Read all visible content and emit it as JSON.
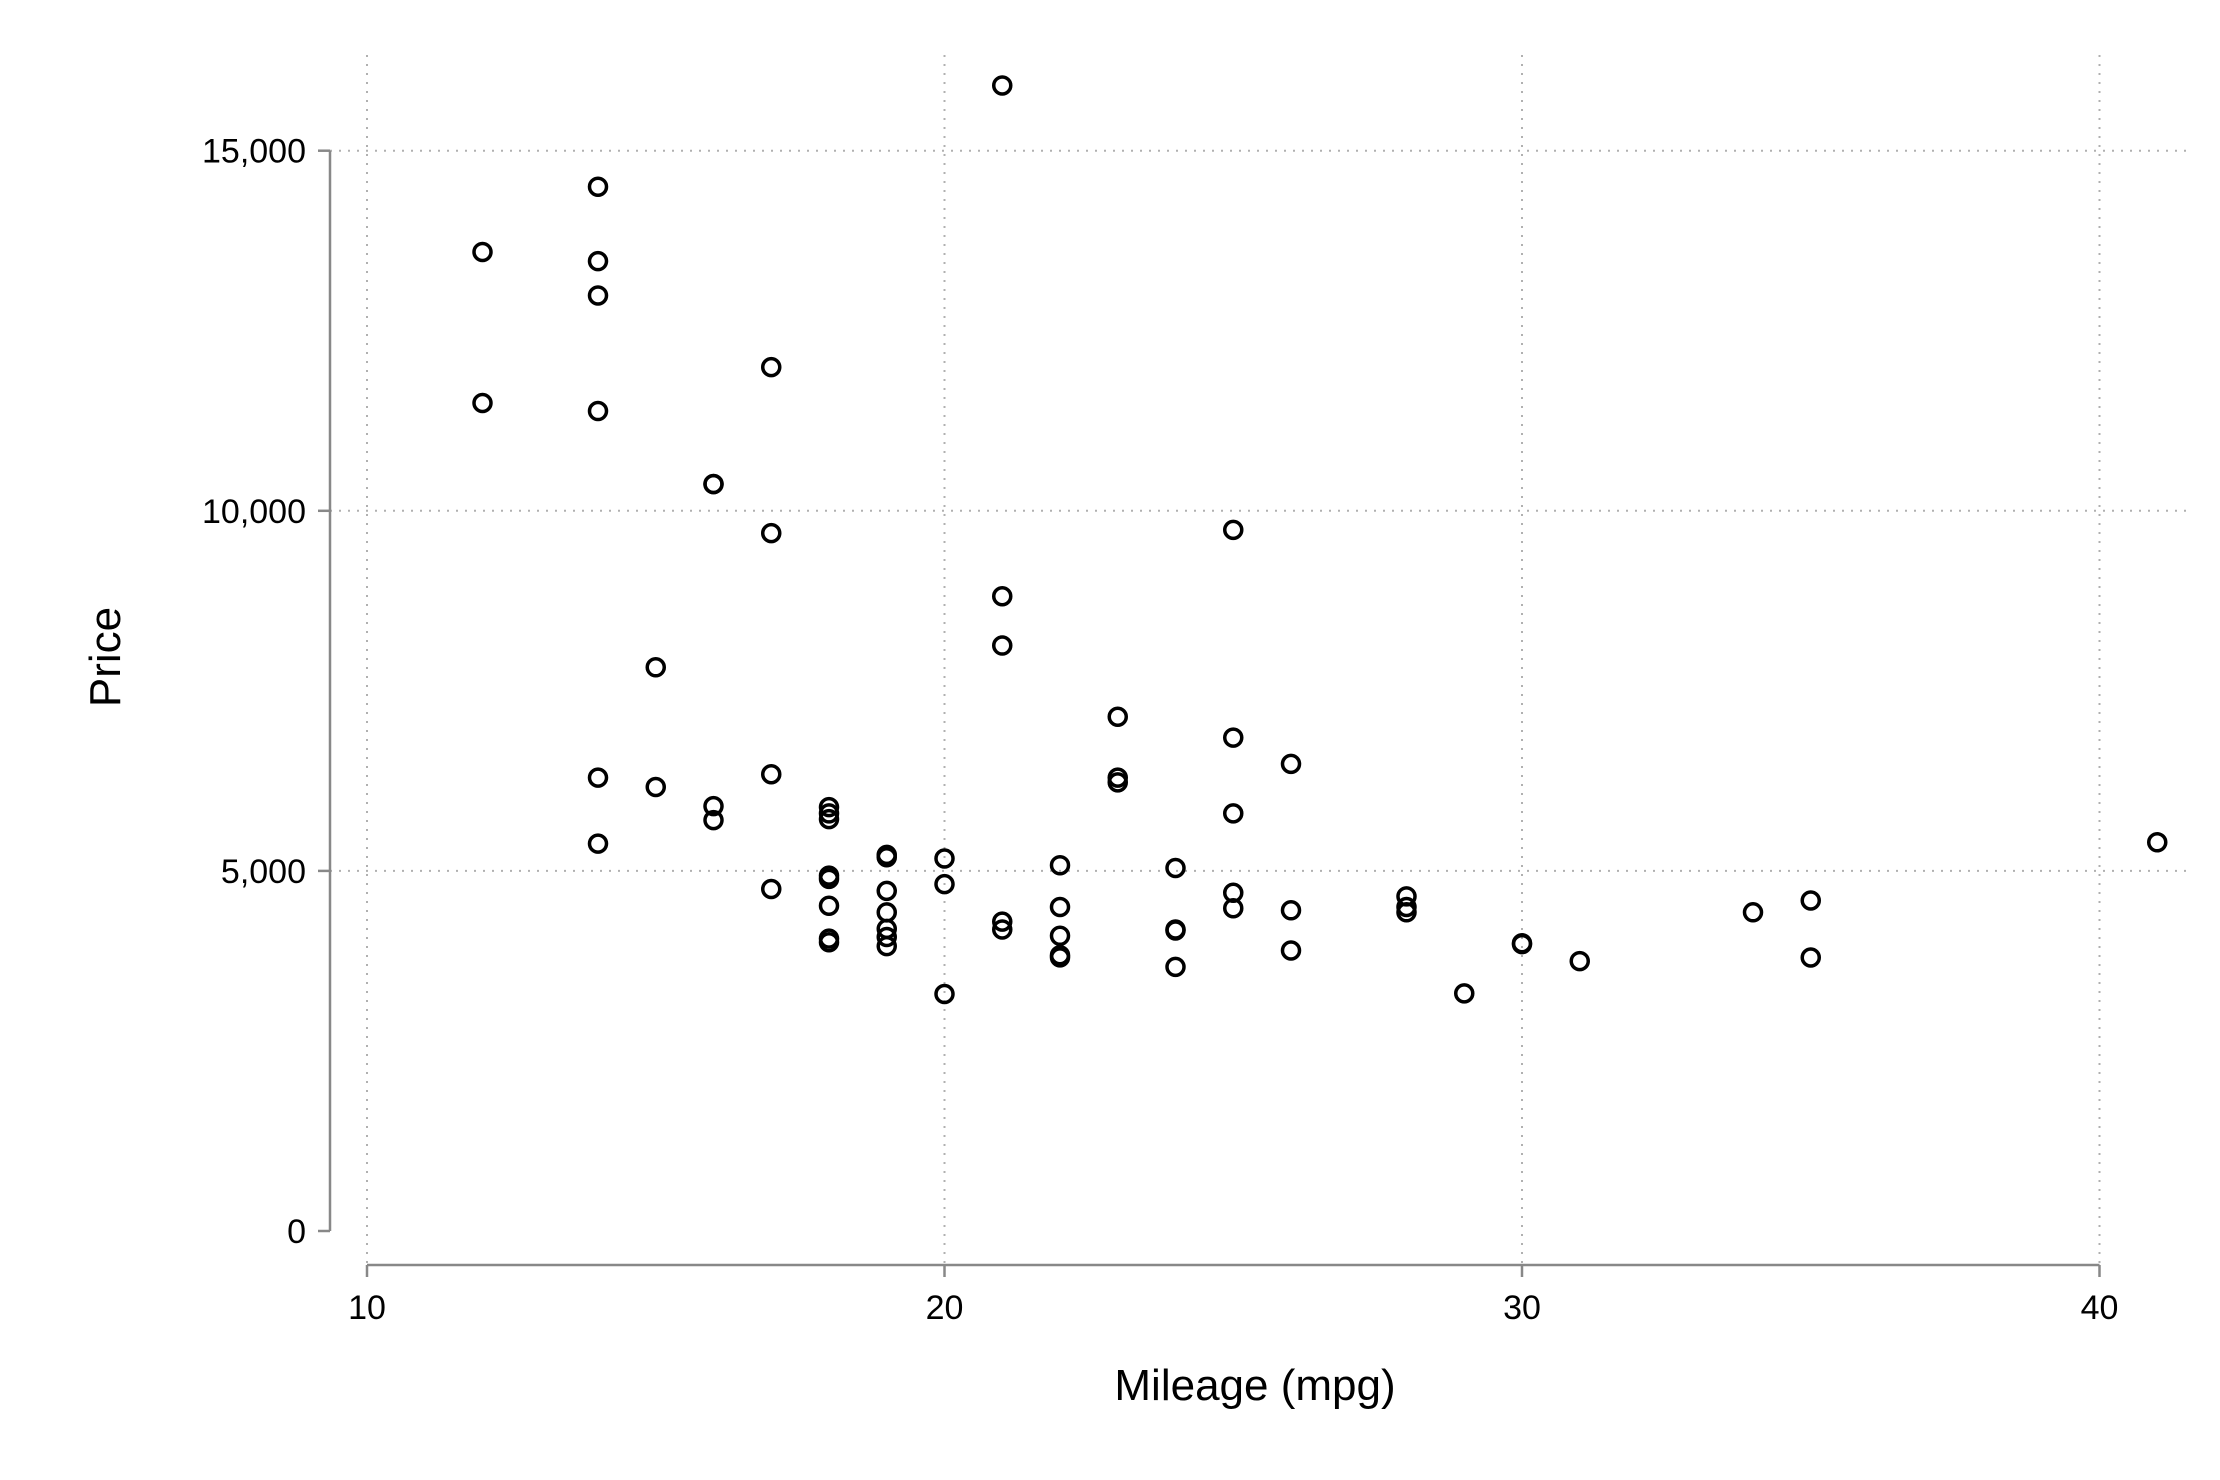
{
  "chart_data": {
    "type": "scatter",
    "title": "",
    "xlabel": "Mileage (mpg)",
    "ylabel": "Price",
    "xlim": [
      10,
      41
    ],
    "ylim": [
      0,
      15906
    ],
    "xticks": [
      10,
      20,
      30,
      40
    ],
    "xtick_labels": [
      "10",
      "20",
      "30",
      "40"
    ],
    "yticks": [
      0,
      5000,
      10000,
      15000
    ],
    "ytick_labels": [
      "0",
      "5,000",
      "10,000",
      "15,000"
    ],
    "grid": true,
    "legend": "none",
    "marker": "hollow-circle",
    "series": [
      {
        "points": [
          [
            12,
            13594
          ],
          [
            12,
            11497
          ],
          [
            14,
            14500
          ],
          [
            14,
            13466
          ],
          [
            14,
            12990
          ],
          [
            14,
            11385
          ],
          [
            14,
            6295
          ],
          [
            14,
            5379
          ],
          [
            15,
            7827
          ],
          [
            15,
            6165
          ],
          [
            16,
            10371
          ],
          [
            16,
            10372
          ],
          [
            16,
            5899
          ],
          [
            16,
            5705
          ],
          [
            17,
            11995
          ],
          [
            17,
            9690
          ],
          [
            17,
            6342
          ],
          [
            17,
            4749
          ],
          [
            18,
            5886
          ],
          [
            18,
            5798
          ],
          [
            18,
            5719
          ],
          [
            18,
            4934
          ],
          [
            18,
            4890
          ],
          [
            18,
            4516
          ],
          [
            18,
            4060
          ],
          [
            18,
            4010
          ],
          [
            19,
            5189
          ],
          [
            19,
            5222
          ],
          [
            19,
            4723
          ],
          [
            19,
            4424
          ],
          [
            19,
            4195
          ],
          [
            19,
            4082
          ],
          [
            19,
            3955
          ],
          [
            20,
            5172
          ],
          [
            20,
            4816
          ],
          [
            20,
            3291
          ],
          [
            21,
            15906
          ],
          [
            21,
            8814
          ],
          [
            21,
            8129
          ],
          [
            21,
            4296
          ],
          [
            21,
            4187
          ],
          [
            22,
            5079
          ],
          [
            22,
            4499
          ],
          [
            22,
            4099
          ],
          [
            22,
            3829
          ],
          [
            22,
            3799
          ],
          [
            23,
            7140
          ],
          [
            23,
            6295
          ],
          [
            23,
            6229
          ],
          [
            24,
            5040
          ],
          [
            24,
            4172
          ],
          [
            24,
            4187
          ],
          [
            24,
            3667
          ],
          [
            25,
            9735
          ],
          [
            25,
            6850
          ],
          [
            25,
            5799
          ],
          [
            25,
            4697
          ],
          [
            25,
            4482
          ],
          [
            26,
            6486
          ],
          [
            26,
            4453
          ],
          [
            26,
            3895
          ],
          [
            28,
            4647
          ],
          [
            28,
            4499
          ],
          [
            28,
            4425
          ],
          [
            29,
            3299
          ],
          [
            30,
            3984
          ],
          [
            30,
            3995
          ],
          [
            31,
            3748
          ],
          [
            34,
            4425
          ],
          [
            35,
            4589
          ],
          [
            35,
            3798
          ],
          [
            41,
            5397
          ]
        ]
      }
    ]
  }
}
